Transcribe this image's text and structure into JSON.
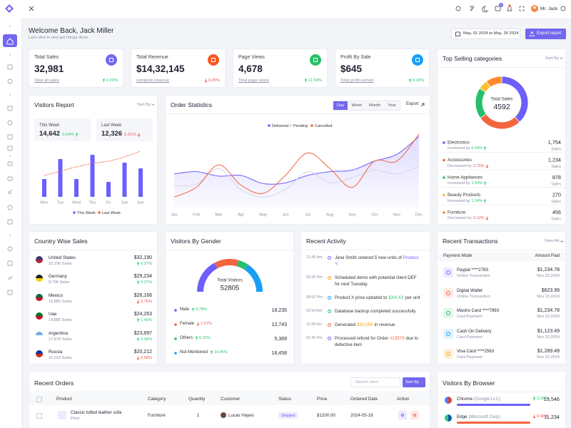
{
  "topbar": {
    "badge": 5,
    "user": "Mr. Jack"
  },
  "header": {
    "title": "Welcome Back, Jack Miller",
    "subtitle": "Let's dive in and get things done.",
    "date_range": "May, 01 2024 to May, 30 2024",
    "export": "Export report"
  },
  "stats": [
    {
      "label": "Total Sales",
      "value": "32,981",
      "link": "View all sales",
      "change": "0.29%",
      "trend": "up",
      "color": "#7367f0"
    },
    {
      "label": "Total Revenue",
      "value": "$14,32,145",
      "link": "complete revenue",
      "change": "3.45%",
      "trend": "down",
      "color": "#f25a24"
    },
    {
      "label": "Page Views",
      "value": "4,678",
      "link": "Total page views",
      "change": "11.54%",
      "trend": "up",
      "color": "#27c06a"
    },
    {
      "label": "Profit By Sale",
      "value": "$645",
      "link": "Total profit earned",
      "change": "0.18%",
      "trend": "up",
      "color": "#1a9ef5"
    }
  ],
  "top_selling": {
    "title": "Top Selling categories",
    "sort": "Sort By",
    "chart": {
      "type": "donut",
      "center_label": "Total Sales",
      "center_value": 4592,
      "unit": "Sales",
      "items": [
        {
          "name": "Electronics",
          "change_text": "Increased by",
          "change": "0.64%",
          "trend": "up",
          "value": 1754,
          "value_label": "1,754",
          "color": "#6c5ffc"
        },
        {
          "name": "Accessories",
          "change_text": "Decreased by",
          "change": "2.75%",
          "trend": "down",
          "value": 1234,
          "value_label": "1,234",
          "color": "#f4643d"
        },
        {
          "name": "Home Appliances",
          "change_text": "Increased by",
          "change": "1.54%",
          "trend": "up",
          "value": 878,
          "value_label": "878",
          "color": "#27c06a"
        },
        {
          "name": "Beauty Products",
          "change_text": "Increased by",
          "change": "1.54%",
          "trend": "up",
          "value": 270,
          "value_label": "270",
          "color": "#f9c12d"
        },
        {
          "name": "Furniture",
          "change_text": "Decreased by",
          "change": "0.12%",
          "trend": "down",
          "value": 456,
          "value_label": "456",
          "color": "#ff8a2b"
        }
      ]
    }
  },
  "visitors_report": {
    "title": "Visitors Report",
    "sort": "Sort By",
    "this_week": {
      "label": "This Week",
      "value": "14,642",
      "change": "0.64%",
      "trend": "up"
    },
    "last_week": {
      "label": "Last Week",
      "value": "12,326",
      "change": "5.31%",
      "trend": "down"
    },
    "chart": {
      "type": "bar",
      "categories": [
        "Mon",
        "Tue",
        "Wed",
        "Thu",
        "Fri",
        "Sat",
        "Sun"
      ],
      "ylim": [
        0,
        70
      ],
      "series": [
        {
          "name": "This Week",
          "color": "#6c5ffc",
          "values": [
            25,
            53,
            25,
            59,
            21,
            48,
            40
          ]
        },
        {
          "name": "Last Week",
          "type": "line",
          "color": "#f4643d",
          "values": [
            30,
            36,
            42,
            47,
            50,
            56,
            64
          ]
        }
      ]
    }
  },
  "order_statistics": {
    "title": "Order Statistics",
    "tabs": [
      "Day",
      "Week",
      "Month",
      "Year"
    ],
    "active_tab": 0,
    "export": "Export",
    "chart": {
      "type": "line",
      "categories": [
        "Jan",
        "Feb",
        "Mar",
        "Apr",
        "May",
        "Jun",
        "Jul",
        "Aug",
        "Sep",
        "Oct",
        "Nov",
        "Dec"
      ],
      "ylim": [
        0,
        100
      ],
      "series": [
        {
          "name": "Delivered",
          "color": "#6c5ffc",
          "area": true,
          "values": [
            45,
            48,
            42,
            43,
            32,
            33,
            43,
            48,
            50,
            62,
            71,
            95
          ]
        },
        {
          "name": "Pending",
          "color": "#d6d6e2",
          "values": [
            29,
            31,
            52,
            24,
            14,
            24,
            48,
            33,
            40,
            50,
            45,
            55
          ]
        },
        {
          "name": "Cancelled",
          "color": "#f4643d",
          "values": [
            14,
            27,
            57,
            30,
            19,
            43,
            73,
            52,
            27,
            62,
            62,
            98
          ]
        }
      ]
    }
  },
  "country_sales": {
    "title": "Country Wise Sales",
    "rows": [
      {
        "country": "United States",
        "sales": "32,190 Sales",
        "amount": "$32,190",
        "change": "0.27%",
        "trend": "up"
      },
      {
        "country": "Germany",
        "sales": "8,796 Sales",
        "amount": "$29,234",
        "change": "0.27%",
        "trend": "up"
      },
      {
        "country": "Mexico",
        "sales": "16,885 Sales",
        "amount": "$26,166",
        "change": "0.75%",
        "trend": "down"
      },
      {
        "country": "Uae",
        "sales": "14,885 Sales",
        "amount": "$24,263",
        "change": "1.45%",
        "trend": "up"
      },
      {
        "country": "Argentina",
        "sales": "17,578 Sales",
        "amount": "$23,897",
        "change": "0.36%",
        "trend": "up"
      },
      {
        "country": "Russia",
        "sales": "10,018 Sales",
        "amount": "$20,212",
        "change": "0.66%",
        "trend": "down"
      }
    ]
  },
  "visitors_gender": {
    "title": "Visitors By Gender",
    "chart": {
      "type": "gauge",
      "center_label": "Total Visitors",
      "center_value": 52805,
      "items": [
        {
          "name": "Male",
          "change": "0.78%",
          "trend": "up",
          "value": 18235,
          "value_label": "18,235",
          "color": "#6c5ffc"
        },
        {
          "name": "Female",
          "change": "1.57%",
          "trend": "down",
          "value": 12743,
          "value_label": "12,743",
          "color": "#f4643d"
        },
        {
          "name": "Others",
          "change": "0.32%",
          "trend": "up",
          "value": 5369,
          "value_label": "5,369",
          "color": "#27c06a"
        },
        {
          "name": "Not Mentioned",
          "change": "19.45%",
          "trend": "up",
          "value": 16458,
          "value_label": "16,458",
          "color": "#1a9ef5"
        }
      ]
    }
  },
  "recent_activity": {
    "title": "Recent Activity",
    "items": [
      {
        "time": "12:45 Am",
        "text": "Jane Smith ordered 5 new units of",
        "highlight": "Product Y.",
        "color": "#6c5ffc"
      },
      {
        "time": "03:26 Pm",
        "text": "Scheduled demo with potential client DEF for next Tuesday"
      },
      {
        "time": "08:52 Pm",
        "text": "Product X price updated to",
        "highlight": "$XX.XX",
        "after": "per unit",
        "color": "#27c06a"
      },
      {
        "time": "02:54 Am",
        "text": "Database backup completed successfully"
      },
      {
        "time": "11:38 Am",
        "text": "Generated",
        "highlight": "$10,000",
        "after": "in revenue",
        "color": "#f59f0b"
      },
      {
        "time": "01:42 Pm",
        "text": "Processed refund for Order",
        "highlight": "#13579",
        "after": "due to defective item",
        "color": "#f4643d"
      }
    ]
  },
  "recent_transactions": {
    "title": "Recent Transactions",
    "view_all": "View All",
    "columns": [
      "Payment Mode",
      "Amount Paid"
    ],
    "rows": [
      {
        "name": "Paypal ****2783",
        "type": "Online Transaction",
        "amount": "$1,234.78",
        "date": "Nov 22,2024",
        "color": "#6c5ffc"
      },
      {
        "name": "Digital Wallet",
        "type": "Online Transaction",
        "amount": "$623.99",
        "date": "Nov 22,2024",
        "color": "#f4643d"
      },
      {
        "name": "Mastro Card ****7893",
        "type": "Card Payment",
        "amount": "$1,234.78",
        "date": "Nov 22,2024",
        "color": "#27c06a"
      },
      {
        "name": "Cash On Delivery",
        "type": "Card Payment",
        "amount": "$1,123.49",
        "date": "Nov 22,2024",
        "color": "#1a9ef5"
      },
      {
        "name": "Visa Card ****2563",
        "type": "Card Payment",
        "amount": "$1,289.49",
        "date": "Nov 22,2024",
        "color": "#f59f0b"
      }
    ]
  },
  "recent_orders": {
    "title": "Recent Orders",
    "search_placeholder": "Search Here",
    "sort": "Sort By",
    "columns": [
      "Product",
      "Category",
      "Quantity",
      "Customer",
      "Status",
      "Price",
      "Ordered Date",
      "Action"
    ],
    "rows": [
      {
        "product": "Classic tufted leather sofa",
        "brand": "Pixel",
        "category": "Furniture",
        "quantity": 1,
        "customer": "Lucas Hayes",
        "status": "Shipped",
        "price": "$1200.00",
        "date": "2024-05-18"
      }
    ]
  },
  "visitors_browser": {
    "title": "Visitors By Browser",
    "rows": [
      {
        "name": "Chrome",
        "company": "(Google LLC)",
        "change": "3.26%",
        "trend": "up",
        "value": "13,546",
        "color": "#6c5ffc"
      },
      {
        "name": "Edge",
        "company": "(Microsoft Corp)",
        "change": "0.96%",
        "trend": "down",
        "value": "11,234",
        "color": "#f4643d"
      }
    ]
  }
}
